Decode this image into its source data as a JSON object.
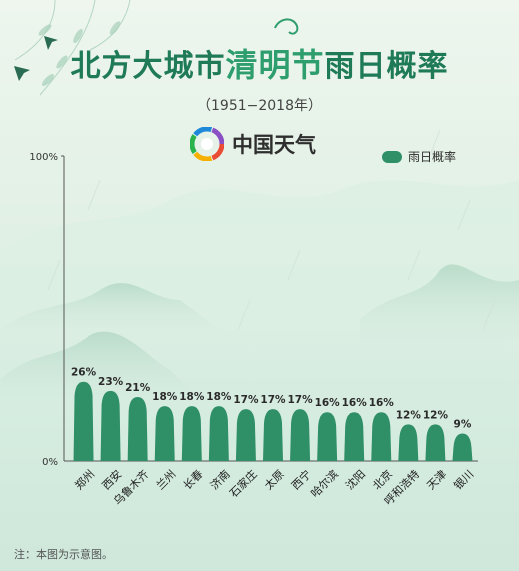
{
  "title_part1": "北方大城市",
  "title_part2": "清明节",
  "title_part3": "雨日概率",
  "subtitle": "（1951−2018年）",
  "brand": {
    "name": "中国天气",
    "logo_icon": "china-weather-logo-icon"
  },
  "note": "注：本图为示意图。",
  "colors": {
    "bar": "#2f8f66",
    "title": "#1f7a57",
    "title_highlight": "#2f9e6e"
  },
  "chart_data": {
    "type": "bar",
    "title": "北方大城市清明节雨日概率",
    "subtitle": "（1951−2018年）",
    "legend": {
      "label": "雨日概率",
      "placement": "top-right"
    },
    "ylim": [
      0,
      100
    ],
    "ytick_labels": [
      "0%",
      "100%"
    ],
    "categories": [
      "郑州",
      "西安",
      "乌鲁木齐",
      "兰州",
      "长春",
      "济南",
      "石家庄",
      "太原",
      "西宁",
      "哈尔滨",
      "沈阳",
      "北京",
      "呼和浩特",
      "天津",
      "银川"
    ],
    "values": [
      26,
      23,
      21,
      18,
      18,
      18,
      17,
      17,
      17,
      16,
      16,
      16,
      12,
      12,
      9
    ],
    "value_labels": [
      "26%",
      "23%",
      "21%",
      "18%",
      "18%",
      "18%",
      "17%",
      "17%",
      "17%",
      "16%",
      "16%",
      "16%",
      "12%",
      "12%",
      "9%"
    ]
  }
}
